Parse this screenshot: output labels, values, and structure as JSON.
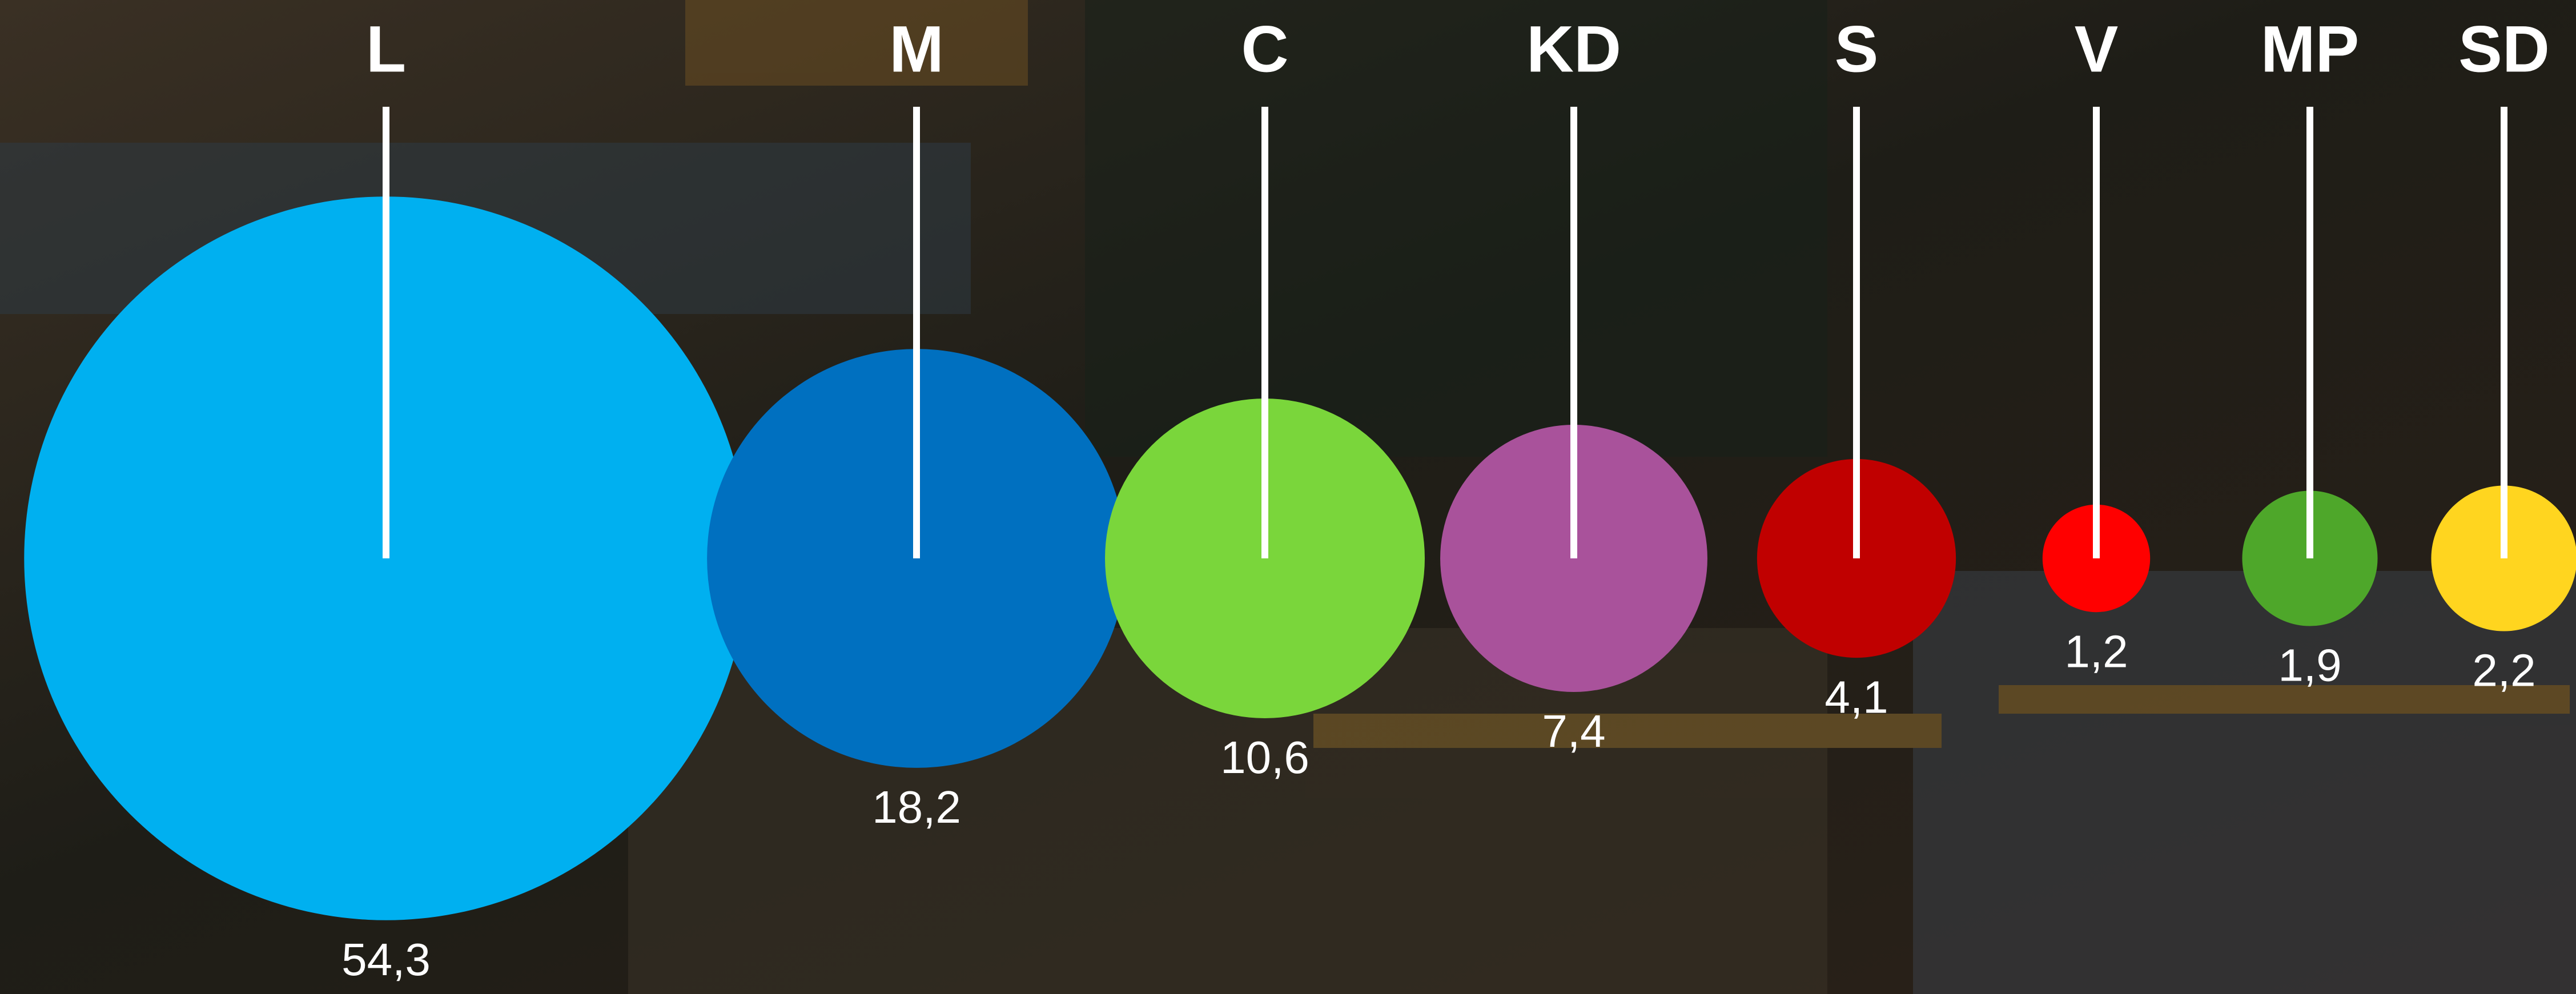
{
  "chart_data": {
    "type": "bubble",
    "categories": [
      "L",
      "M",
      "C",
      "KD",
      "S",
      "V",
      "MP",
      "SD"
    ],
    "values": [
      54.3,
      18.2,
      10.6,
      7.4,
      4.1,
      1.2,
      1.9,
      2.2
    ],
    "value_labels": [
      "54,3",
      "18,2",
      "10,6",
      "7,4",
      "4,1",
      "1,2",
      "1,9",
      "2,2"
    ],
    "colors": [
      "#00b0f0",
      "#0070c0",
      "#7ad63b",
      "#a9529b",
      "#c00000",
      "#ff0000",
      "#4ea72a",
      "#ffd51f"
    ]
  }
}
